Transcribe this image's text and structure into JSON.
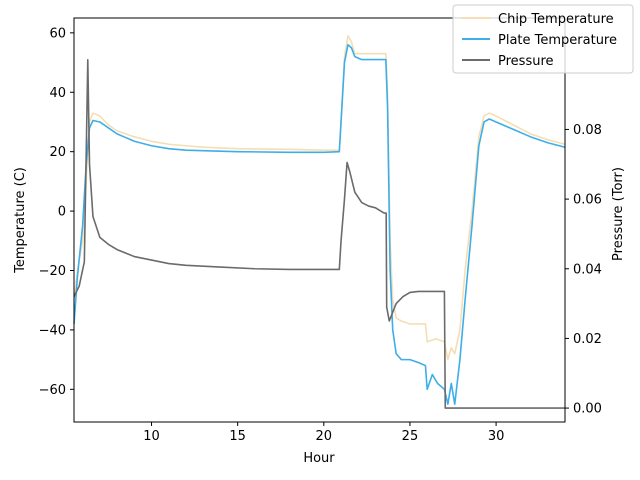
{
  "chart_data": {
    "type": "line",
    "title": "",
    "xlabel": "Hour",
    "ylabel_left": "Temperature (C)",
    "ylabel_right": "Pressure (Torr)",
    "xlim": [
      5.5,
      34
    ],
    "ylim_left": [
      -71,
      65
    ],
    "ylim_right": [
      -0.004,
      0.112
    ],
    "grid": false,
    "legend_position": "top-right",
    "x_ticks": [
      10,
      15,
      20,
      25,
      30
    ],
    "y_left_ticks": [
      -60,
      -40,
      -20,
      0,
      20,
      40,
      60
    ],
    "y_right_ticks": [
      0.0,
      0.02,
      0.04,
      0.06,
      0.08
    ],
    "y_right_tick_labels": [
      "0.00",
      "0.02",
      "0.04",
      "0.06",
      "0.08"
    ],
    "series": [
      {
        "name": "Chip Temperature",
        "axis": "left",
        "color": "#f5deb3",
        "points": [
          [
            5.5,
            -30
          ],
          [
            5.7,
            -20
          ],
          [
            6.0,
            -10
          ],
          [
            6.2,
            10
          ],
          [
            6.4,
            30
          ],
          [
            6.6,
            33
          ],
          [
            7,
            32
          ],
          [
            7.5,
            29
          ],
          [
            8,
            27
          ],
          [
            9,
            25
          ],
          [
            10,
            23.5
          ],
          [
            11,
            22.5
          ],
          [
            12,
            22
          ],
          [
            13,
            21.5
          ],
          [
            15,
            21
          ],
          [
            18,
            20.8
          ],
          [
            20,
            20.5
          ],
          [
            20.9,
            20.5
          ],
          [
            21.0,
            30
          ],
          [
            21.2,
            52
          ],
          [
            21.4,
            59
          ],
          [
            21.6,
            57
          ],
          [
            21.8,
            53
          ],
          [
            22.2,
            53
          ],
          [
            23.0,
            53
          ],
          [
            23.6,
            53
          ],
          [
            23.7,
            40
          ],
          [
            23.85,
            -10
          ],
          [
            24.0,
            -30
          ],
          [
            24.2,
            -36
          ],
          [
            24.5,
            -37
          ],
          [
            25.0,
            -38
          ],
          [
            25.5,
            -38
          ],
          [
            25.9,
            -38
          ],
          [
            26.0,
            -44
          ],
          [
            26.5,
            -43
          ],
          [
            27.0,
            -44
          ],
          [
            27.2,
            -50
          ],
          [
            27.4,
            -46
          ],
          [
            27.6,
            -48
          ],
          [
            27.9,
            -40
          ],
          [
            28.2,
            -20
          ],
          [
            28.6,
            0
          ],
          [
            29.0,
            25
          ],
          [
            29.3,
            32
          ],
          [
            29.6,
            33
          ],
          [
            30,
            32
          ],
          [
            31,
            29
          ],
          [
            32,
            26
          ],
          [
            33,
            24
          ],
          [
            34,
            22.5
          ]
        ]
      },
      {
        "name": "Plate Temperature",
        "axis": "left",
        "color": "#3daee9",
        "points": [
          [
            5.5,
            -38
          ],
          [
            5.7,
            -22
          ],
          [
            6.0,
            -5
          ],
          [
            6.2,
            15
          ],
          [
            6.4,
            28
          ],
          [
            6.6,
            30.5
          ],
          [
            7,
            30
          ],
          [
            7.5,
            28
          ],
          [
            8,
            26
          ],
          [
            9,
            23.5
          ],
          [
            10,
            22
          ],
          [
            11,
            21
          ],
          [
            12,
            20.5
          ],
          [
            15,
            20
          ],
          [
            18,
            19.8
          ],
          [
            20,
            19.8
          ],
          [
            20.9,
            20
          ],
          [
            21.0,
            30
          ],
          [
            21.2,
            50
          ],
          [
            21.4,
            56
          ],
          [
            21.6,
            55
          ],
          [
            21.8,
            52
          ],
          [
            22.2,
            51
          ],
          [
            23.0,
            51
          ],
          [
            23.6,
            51
          ],
          [
            23.7,
            35
          ],
          [
            23.85,
            -20
          ],
          [
            24.0,
            -40
          ],
          [
            24.2,
            -48
          ],
          [
            24.5,
            -50
          ],
          [
            25.0,
            -50
          ],
          [
            25.5,
            -51
          ],
          [
            25.9,
            -52
          ],
          [
            26.0,
            -60
          ],
          [
            26.3,
            -55
          ],
          [
            26.6,
            -58
          ],
          [
            27.0,
            -60
          ],
          [
            27.2,
            -65
          ],
          [
            27.4,
            -58
          ],
          [
            27.6,
            -65
          ],
          [
            27.9,
            -50
          ],
          [
            28.2,
            -30
          ],
          [
            28.6,
            -5
          ],
          [
            29.0,
            22
          ],
          [
            29.3,
            30
          ],
          [
            29.6,
            31
          ],
          [
            30,
            30
          ],
          [
            31,
            27.5
          ],
          [
            32,
            25
          ],
          [
            33,
            23
          ],
          [
            34,
            21.5
          ]
        ]
      },
      {
        "name": "Pressure",
        "axis": "right",
        "color": "#6b6b6b",
        "points": [
          [
            5.5,
            0.032
          ],
          [
            5.8,
            0.035
          ],
          [
            6.1,
            0.042
          ],
          [
            6.25,
            0.085
          ],
          [
            6.3,
            0.1
          ],
          [
            6.4,
            0.07
          ],
          [
            6.6,
            0.055
          ],
          [
            7,
            0.049
          ],
          [
            7.5,
            0.047
          ],
          [
            8,
            0.0455
          ],
          [
            9,
            0.0435
          ],
          [
            10,
            0.0425
          ],
          [
            11,
            0.0415
          ],
          [
            12,
            0.041
          ],
          [
            14,
            0.0405
          ],
          [
            16,
            0.04
          ],
          [
            18,
            0.0398
          ],
          [
            20,
            0.0398
          ],
          [
            20.9,
            0.0398
          ],
          [
            21.0,
            0.048
          ],
          [
            21.2,
            0.06
          ],
          [
            21.35,
            0.0705
          ],
          [
            21.5,
            0.068
          ],
          [
            21.8,
            0.062
          ],
          [
            22.2,
            0.059
          ],
          [
            22.6,
            0.058
          ],
          [
            23.0,
            0.0575
          ],
          [
            23.5,
            0.056
          ],
          [
            23.62,
            0.056
          ],
          [
            23.65,
            0.029
          ],
          [
            23.8,
            0.025
          ],
          [
            24.2,
            0.03
          ],
          [
            24.6,
            0.032
          ],
          [
            25.0,
            0.0332
          ],
          [
            25.5,
            0.0335
          ],
          [
            26.0,
            0.0335
          ],
          [
            27.0,
            0.0335
          ],
          [
            27.05,
            0.0
          ],
          [
            28,
            0.0
          ],
          [
            30,
            0.0
          ],
          [
            32,
            0.0
          ],
          [
            34,
            0.0
          ]
        ]
      }
    ]
  }
}
